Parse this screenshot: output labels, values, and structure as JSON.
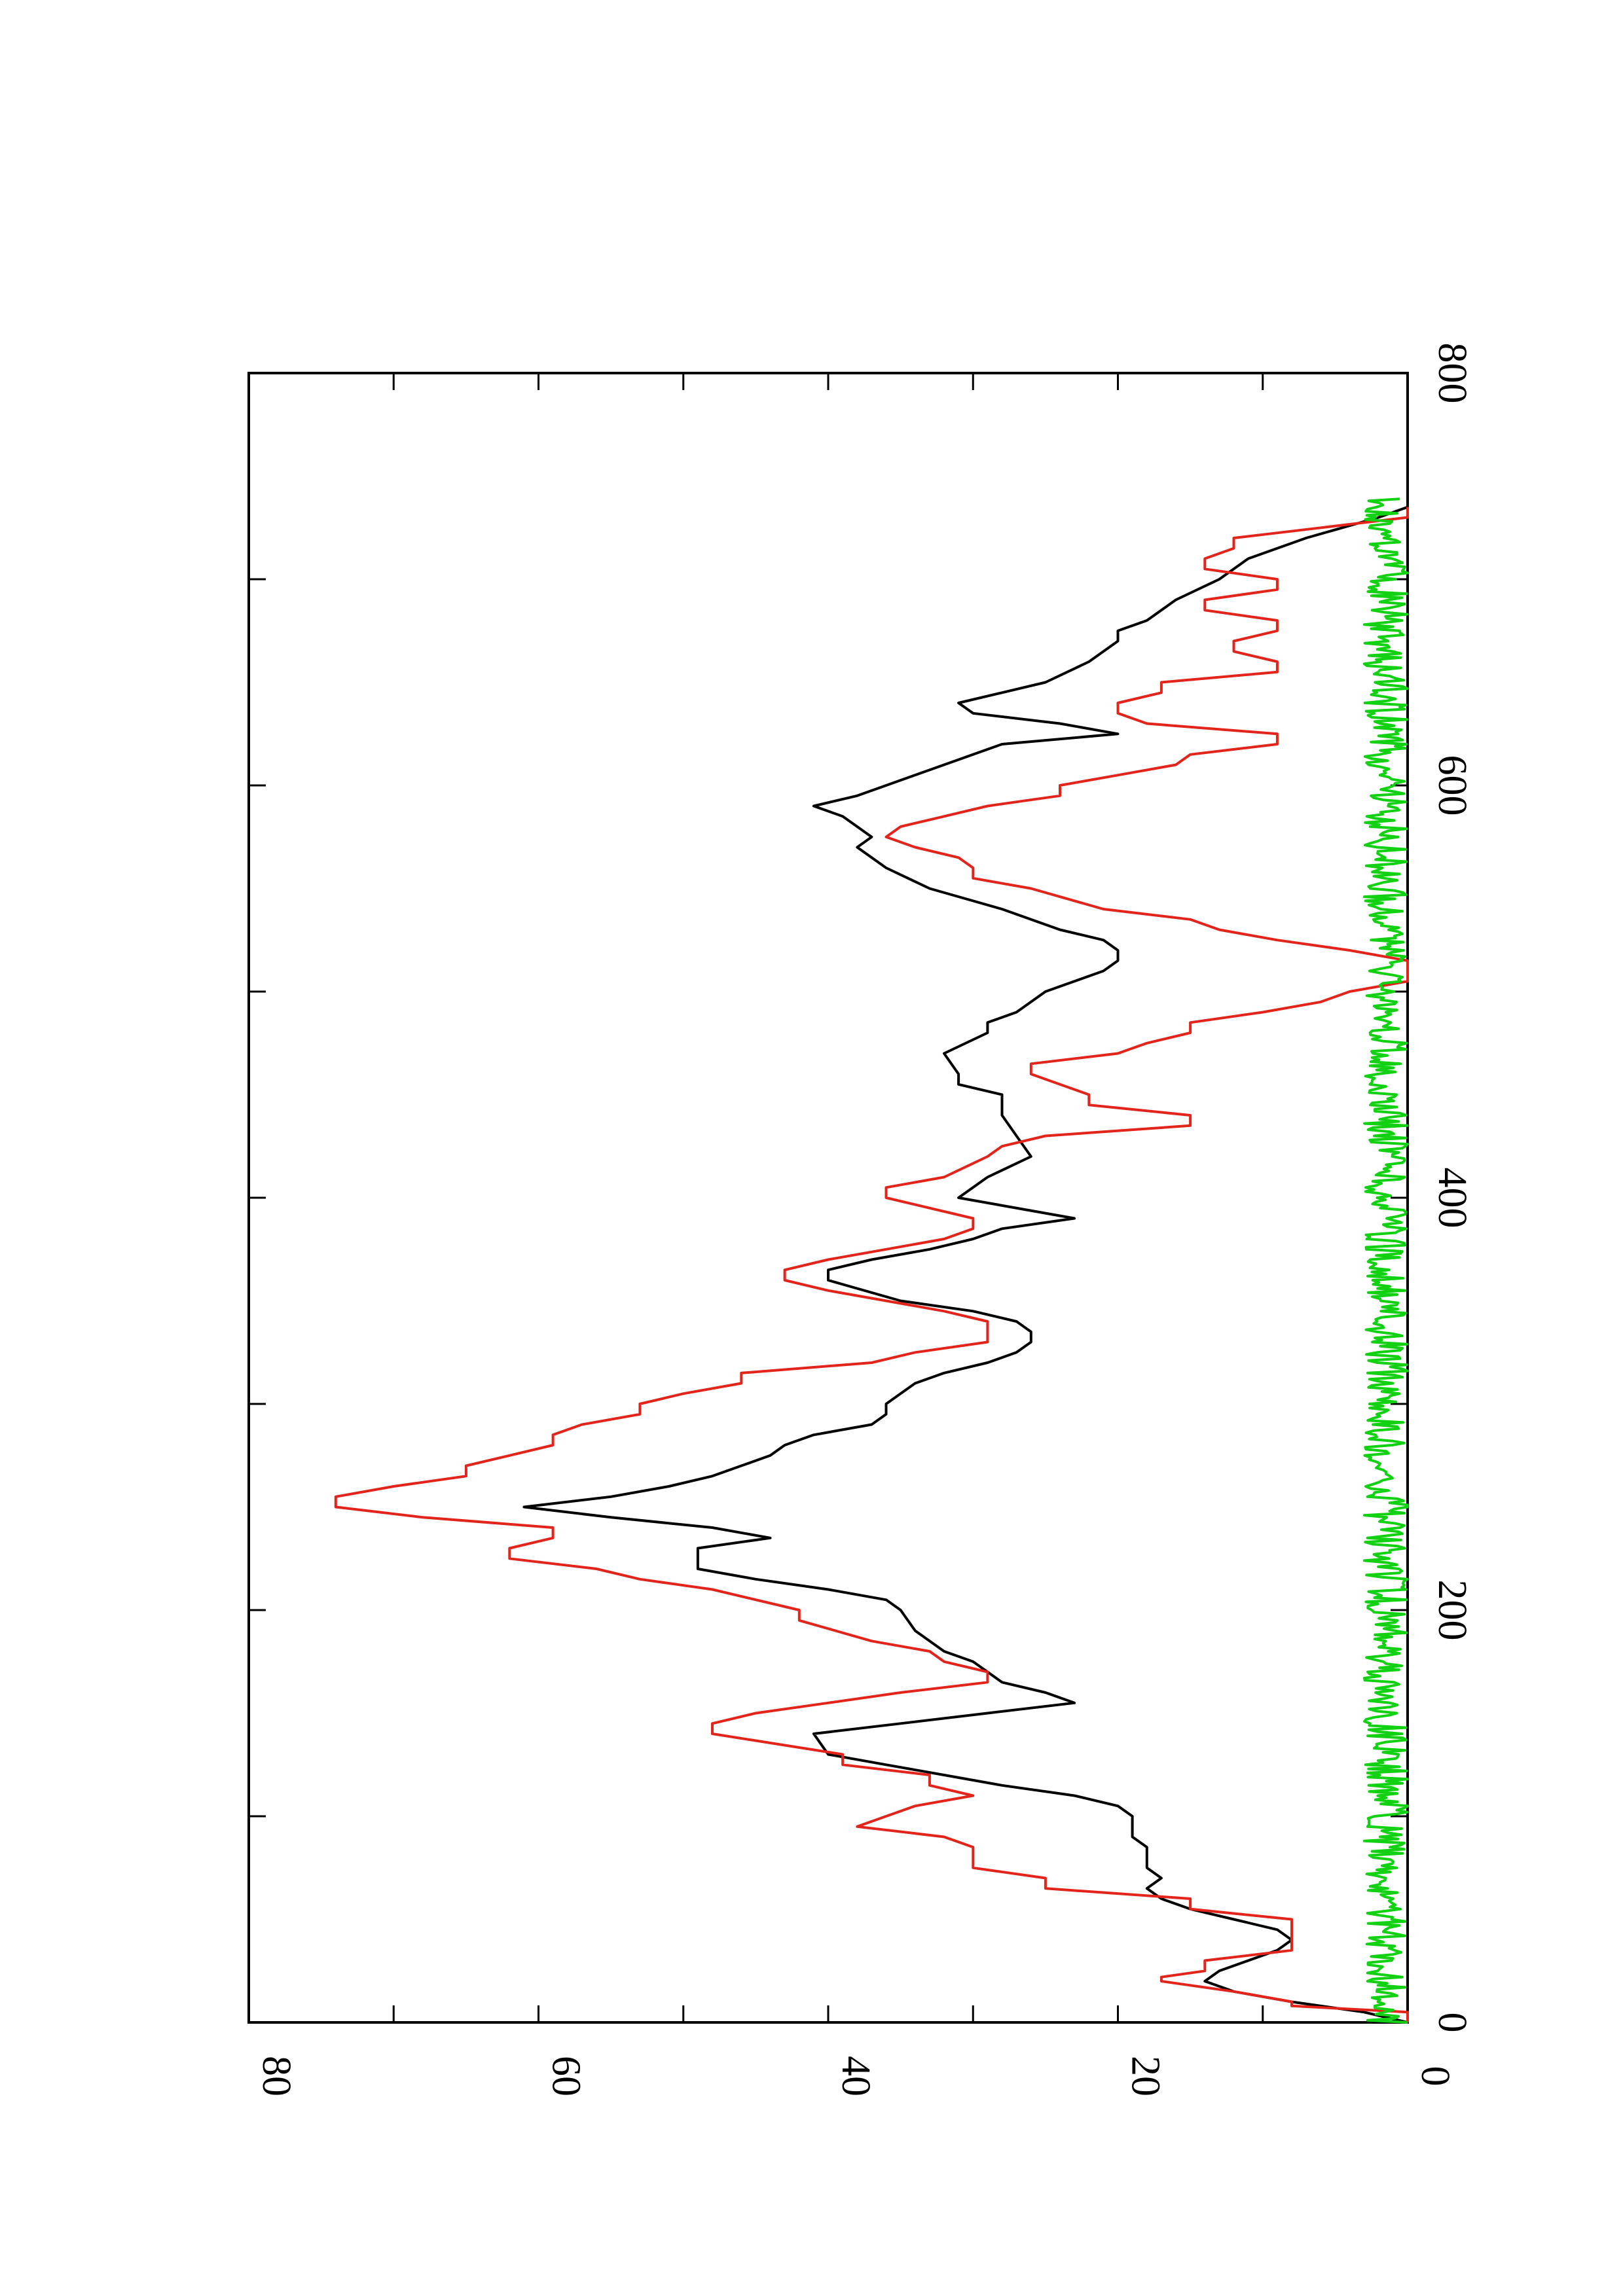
{
  "chart_data": {
    "type": "line",
    "orientation": "rotated-90-clockwise",
    "title": "",
    "xlabel": "",
    "ylabel": "",
    "xlim": [
      0,
      800
    ],
    "ylim": [
      0,
      80
    ],
    "x_ticks": [
      0,
      200,
      400,
      600,
      800
    ],
    "y_ticks": [
      0,
      20,
      40,
      60,
      80
    ],
    "x_minor_ticks": [
      100,
      300,
      500,
      700
    ],
    "y_minor_ticks": [
      10,
      30,
      50,
      70
    ],
    "grid": false,
    "legend": "none",
    "series": [
      {
        "color": "#000000",
        "x": [
          0,
          5,
          10,
          15,
          20,
          25,
          30,
          35,
          40,
          45,
          50,
          55,
          60,
          65,
          70,
          75,
          80,
          85,
          90,
          95,
          100,
          105,
          110,
          115,
          120,
          125,
          130,
          140,
          145,
          150,
          155,
          160,
          165,
          170,
          175,
          180,
          185,
          190,
          200,
          205,
          210,
          215,
          220,
          230,
          235,
          240,
          245,
          250,
          255,
          260,
          265,
          270,
          275,
          280,
          285,
          290,
          295,
          300,
          305,
          310,
          315,
          320,
          325,
          330,
          335,
          340,
          345,
          350,
          360,
          365,
          370,
          375,
          380,
          385,
          390,
          400,
          410,
          420,
          430,
          440,
          450,
          455,
          460,
          470,
          480,
          485,
          490,
          500,
          510,
          515,
          520,
          525,
          530,
          540,
          550,
          560,
          565,
          570,
          575,
          580,
          585,
          590,
          595,
          600,
          610,
          620,
          625,
          630,
          635,
          640,
          645,
          650,
          660,
          670,
          675,
          680,
          690,
          700,
          710,
          715,
          720,
          730,
          735
        ],
        "y": [
          0,
          3,
          8,
          12,
          14,
          13,
          11,
          9,
          8,
          9,
          12,
          15,
          17,
          18,
          17,
          18,
          18,
          18,
          19,
          19,
          19,
          20,
          23,
          28,
          32,
          36,
          40,
          41,
          35,
          29,
          23,
          25,
          28,
          29,
          30,
          32,
          33,
          34,
          35,
          36,
          40,
          45,
          49,
          49,
          44,
          48,
          55,
          61,
          55,
          51,
          48,
          46,
          44,
          43,
          41,
          37,
          36,
          36,
          35,
          34,
          32,
          29,
          27,
          26,
          26,
          27,
          30,
          35,
          40,
          40,
          37,
          33,
          30,
          28,
          23,
          31,
          29,
          26,
          27,
          28,
          28,
          31,
          31,
          32,
          29,
          29,
          27,
          25,
          21,
          20,
          20,
          21,
          24,
          28,
          33,
          36,
          37,
          38,
          37,
          38,
          39,
          41,
          38,
          36,
          32,
          28,
          20,
          24,
          30,
          31,
          28,
          25,
          22,
          20,
          20,
          18,
          16,
          13,
          11,
          9,
          7,
          2,
          0
        ]
      },
      {
        "color": "#e3241b",
        "x": [
          0,
          5,
          8,
          10,
          15,
          20,
          22,
          25,
          30,
          35,
          40,
          45,
          50,
          55,
          60,
          65,
          70,
          75,
          80,
          85,
          90,
          95,
          100,
          105,
          110,
          115,
          120,
          125,
          130,
          140,
          145,
          150,
          155,
          160,
          165,
          170,
          175,
          180,
          185,
          195,
          200,
          210,
          215,
          220,
          225,
          230,
          235,
          240,
          245,
          250,
          255,
          260,
          265,
          270,
          275,
          280,
          285,
          290,
          295,
          300,
          305,
          310,
          315,
          320,
          325,
          330,
          340,
          345,
          350,
          355,
          360,
          365,
          370,
          375,
          380,
          385,
          390,
          400,
          405,
          410,
          420,
          425,
          430,
          435,
          440,
          445,
          450,
          455,
          460,
          465,
          470,
          475,
          480,
          485,
          490,
          495,
          500,
          505,
          510,
          515,
          520,
          525,
          530,
          535,
          540,
          550,
          555,
          560,
          565,
          570,
          575,
          580,
          585,
          590,
          595,
          600,
          605,
          610,
          615,
          620,
          625,
          630,
          635,
          640,
          645,
          650,
          655,
          660,
          665,
          670,
          675,
          680,
          685,
          690,
          695,
          700,
          705,
          710,
          715,
          720,
          725,
          730,
          735
        ],
        "y": [
          0,
          0,
          8,
          8,
          12,
          17,
          17,
          14,
          14,
          8,
          8,
          8,
          8,
          15,
          15,
          25,
          25,
          30,
          30,
          30,
          32,
          38,
          36,
          34,
          30,
          33,
          33,
          39,
          39,
          48,
          48,
          45,
          40,
          35,
          29,
          29,
          32,
          33,
          37,
          42,
          42,
          48,
          53,
          56,
          62,
          62,
          59,
          59,
          68,
          74,
          74,
          70,
          65,
          65,
          62,
          59,
          59,
          57,
          53,
          53,
          50,
          46,
          46,
          37,
          34,
          29,
          29,
          32,
          36,
          40,
          43,
          43,
          40,
          36,
          32,
          30,
          30,
          36,
          36,
          32,
          29,
          28,
          25,
          15,
          15,
          22,
          22,
          24,
          26,
          26,
          20,
          18,
          15,
          15,
          10,
          6,
          4,
          0,
          0,
          0,
          4,
          9,
          13,
          15,
          21,
          26,
          30,
          30,
          31,
          34,
          36,
          35,
          32,
          29,
          24,
          24,
          20,
          16,
          15,
          9,
          9,
          18,
          20,
          20,
          17,
          17,
          9,
          9,
          12,
          12,
          9,
          9,
          14,
          14,
          9,
          9,
          14,
          14,
          12,
          12,
          6,
          0,
          0
        ]
      },
      {
        "color": "#12d012",
        "description": "noise near zero",
        "seed": 7,
        "n": 740,
        "min": 0,
        "max": 3
      }
    ]
  }
}
